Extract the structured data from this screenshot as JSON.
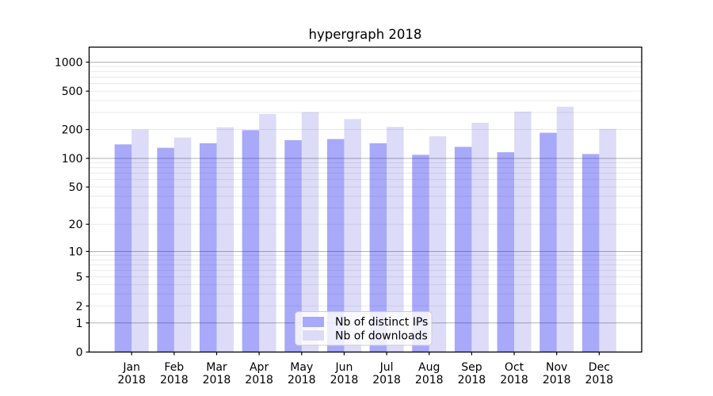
{
  "chart_data": {
    "type": "bar",
    "title": "hypergraph 2018",
    "months": [
      "Jan",
      "Feb",
      "Mar",
      "Apr",
      "May",
      "Jun",
      "Jul",
      "Aug",
      "Sep",
      "Oct",
      "Nov",
      "Dec"
    ],
    "year": "2018",
    "series": [
      {
        "name": "Nb of distinct IPs",
        "color": "#a9a9f9",
        "values": [
          140,
          129,
          144,
          197,
          155,
          159,
          144,
          109,
          132,
          116,
          185,
          111
        ]
      },
      {
        "name": "Nb of downloads",
        "color": "#dcdcf8",
        "values": [
          200,
          165,
          211,
          290,
          303,
          257,
          213,
          170,
          235,
          307,
          345,
          203
        ]
      }
    ],
    "yscale": "log1p",
    "yticks": [
      0,
      1,
      2,
      5,
      10,
      20,
      50,
      100,
      200,
      500,
      1000
    ],
    "ylim": [
      0,
      1430
    ],
    "grid": true,
    "legend_position": "lower center"
  },
  "colors": {
    "major_grid": "#b1b1b1",
    "minor_grid": "#e9e9e9",
    "axis": "#000000",
    "background": "#ffffff",
    "legend_border": "#cccccc"
  }
}
